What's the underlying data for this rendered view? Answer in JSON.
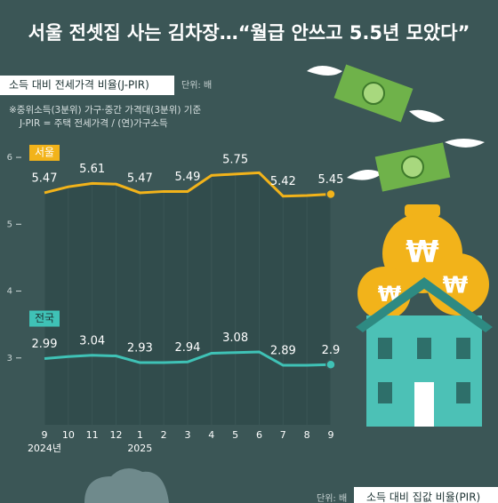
{
  "chart_data": {
    "type": "line",
    "title": "서울 전셋집 사는 김차장…“월급 안쓰고 5.5년 모았다”",
    "subtitle": "소득 대비 전세가격 비율(J-PIR)",
    "unit": "단위: 배",
    "notes": [
      "※중위소득(3분위) 가구·중간 가격대(3분위) 기준",
      "J-PIR = 주택 전세가격 / (연)가구소득"
    ],
    "categories": [
      "9",
      "10",
      "11",
      "12",
      "1",
      "2",
      "3",
      "4",
      "5",
      "6",
      "7",
      "8",
      "9"
    ],
    "category_sublabels": [
      "2024년",
      null,
      null,
      null,
      "2025",
      null,
      null,
      null,
      null,
      null,
      null,
      null,
      null
    ],
    "series": [
      {
        "name": "서울",
        "color": "#f2b31a",
        "values": [
          5.47,
          5.56,
          5.61,
          5.6,
          5.47,
          5.49,
          5.49,
          5.73,
          5.75,
          5.77,
          5.42,
          5.43,
          5.45
        ],
        "value_labels": [
          "5.47",
          null,
          "5.61",
          null,
          "5.47",
          null,
          "5.49",
          null,
          "5.75",
          null,
          "5.42",
          null,
          "5.45"
        ]
      },
      {
        "name": "전국",
        "color": "#3fc2b6",
        "values": [
          2.99,
          3.02,
          3.04,
          3.03,
          2.93,
          2.93,
          2.94,
          3.07,
          3.08,
          3.09,
          2.89,
          2.89,
          2.9
        ],
        "value_labels": [
          "2.99",
          null,
          "3.04",
          null,
          "2.93",
          null,
          "2.94",
          null,
          "3.08",
          null,
          "2.89",
          null,
          "2.9"
        ]
      }
    ],
    "ylim": [
      2,
      6.3
    ],
    "yticks": [
      3,
      4,
      5,
      6
    ],
    "footer_unit": "단위: 배",
    "footer_title": "소득 대비 집값 비율(PIR)"
  }
}
